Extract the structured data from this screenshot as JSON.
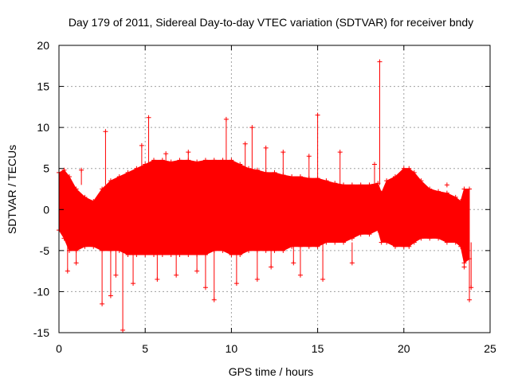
{
  "chart_data": {
    "type": "scatter",
    "title": "Day 179 of 2011, Sidereal Day-to-day VTEC variation (SDTVAR) for receiver bndy",
    "xlabel": "GPS time / hours",
    "ylabel": "SDTVAR / TECUs",
    "xlim": [
      0,
      25
    ],
    "ylim": [
      -15,
      20
    ],
    "xticks": [
      0,
      5,
      10,
      15,
      20,
      25
    ],
    "yticks": [
      -15,
      -10,
      -5,
      0,
      5,
      10,
      15,
      20
    ],
    "xtick_labels": [
      "0",
      "5",
      "10",
      "15",
      "20",
      "25"
    ],
    "ytick_labels": [
      "-15",
      "-10",
      "-5",
      "0",
      "5",
      "10",
      "15",
      "20"
    ],
    "grid": true,
    "marker": "+",
    "color": "#ff0000",
    "envelope": {
      "x": [
        0.0,
        0.3,
        0.6,
        1.0,
        1.5,
        2.0,
        2.5,
        3.0,
        3.5,
        4.0,
        4.5,
        5.0,
        5.5,
        6.0,
        6.5,
        7.0,
        7.5,
        8.0,
        8.5,
        9.0,
        9.5,
        10.0,
        10.5,
        11.0,
        11.5,
        12.0,
        12.5,
        13.0,
        13.5,
        14.0,
        14.5,
        15.0,
        15.5,
        16.0,
        16.5,
        17.0,
        17.5,
        18.0,
        18.5,
        18.7,
        19.0,
        19.5,
        20.0,
        20.3,
        20.6,
        21.0,
        21.5,
        22.0,
        22.5,
        23.0,
        23.3,
        23.5,
        23.8
      ],
      "upper": [
        4.5,
        4.8,
        4.0,
        2.5,
        1.5,
        1.0,
        2.5,
        3.5,
        4.0,
        4.5,
        5.0,
        5.5,
        6.0,
        6.0,
        5.8,
        6.0,
        6.0,
        5.8,
        6.0,
        6.0,
        6.0,
        6.0,
        5.5,
        5.0,
        4.8,
        4.5,
        4.5,
        4.2,
        4.0,
        4.0,
        3.8,
        3.8,
        3.5,
        3.2,
        3.0,
        3.0,
        3.0,
        3.0,
        3.2,
        2.0,
        3.5,
        4.0,
        5.0,
        5.0,
        4.5,
        3.5,
        2.5,
        2.2,
        2.0,
        1.5,
        1.0,
        2.5,
        2.5
      ],
      "lower": [
        -2.5,
        -3.5,
        -5.0,
        -5.0,
        -4.5,
        -4.5,
        -5.0,
        -5.0,
        -5.0,
        -5.5,
        -5.5,
        -5.5,
        -5.5,
        -5.5,
        -5.5,
        -5.5,
        -5.5,
        -5.5,
        -5.5,
        -5.0,
        -5.0,
        -5.5,
        -5.5,
        -5.0,
        -5.0,
        -5.0,
        -5.0,
        -5.0,
        -4.5,
        -4.5,
        -4.5,
        -4.5,
        -4.0,
        -4.0,
        -4.0,
        -3.5,
        -3.0,
        -3.0,
        -2.5,
        -4.0,
        -4.0,
        -4.5,
        -4.5,
        -4.5,
        -4.0,
        -3.5,
        -3.5,
        -3.5,
        -4.0,
        -4.0,
        -4.5,
        -6.5,
        -6.0
      ]
    },
    "outliers": {
      "x": [
        0.5,
        1.0,
        1.3,
        2.5,
        2.7,
        3.0,
        3.3,
        3.7,
        4.3,
        4.8,
        5.2,
        5.7,
        6.2,
        6.8,
        7.5,
        8.0,
        8.5,
        9.0,
        9.7,
        10.3,
        10.8,
        11.2,
        11.5,
        12.0,
        12.3,
        13.0,
        13.6,
        14.0,
        14.5,
        15.0,
        15.3,
        16.3,
        17.0,
        18.3,
        18.6,
        22.5,
        23.5,
        23.8,
        23.9
      ],
      "y": [
        -7.5,
        -6.5,
        4.8,
        -11.5,
        9.5,
        -10.5,
        -8.0,
        -14.7,
        -9.0,
        7.8,
        11.2,
        -8.5,
        6.8,
        -8.0,
        7.0,
        -7.5,
        -9.5,
        -11.0,
        11.0,
        -9.0,
        8.0,
        10.0,
        -8.5,
        7.5,
        -7.0,
        7.0,
        -6.5,
        -8.0,
        6.5,
        11.5,
        -8.5,
        7.0,
        -6.5,
        5.5,
        18.0,
        3.0,
        -7.0,
        -11.0,
        -9.5
      ]
    }
  }
}
